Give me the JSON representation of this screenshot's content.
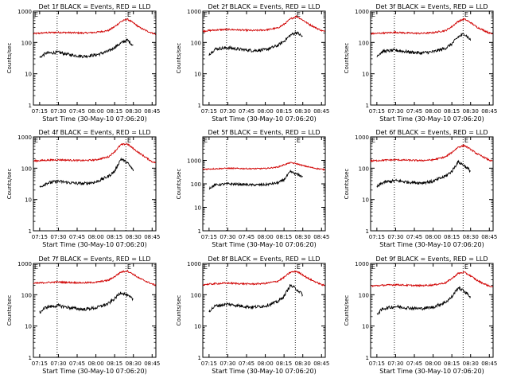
{
  "chart_data": [
    {
      "type": "line",
      "title": "Det 1f BLACK = Events, RED = LLD",
      "xlabel": "Start Time (30-May-10 07:06:20)",
      "ylabel": "Counts/sec",
      "x_ticks": [
        "07:15",
        "07:30",
        "07:45",
        "08:00",
        "08:15",
        "08:30",
        "08:45"
      ],
      "y_ticks": [
        "1",
        "10",
        "100",
        "1000"
      ],
      "xlim": [
        "07:10",
        "08:48"
      ],
      "ylim": [
        1,
        1000
      ],
      "y_scale": "log",
      "vlines": [
        "07:29",
        "08:24"
      ],
      "marker_label": "E",
      "marker_at": "08:25",
      "series": [
        {
          "color": "#d00000",
          "x": [
            "07:10",
            "07:20",
            "07:30",
            "07:40",
            "07:50",
            "08:00",
            "08:10",
            "08:15",
            "08:20",
            "08:25",
            "08:30",
            "08:35",
            "08:40",
            "08:45",
            "08:48"
          ],
          "values": [
            190,
            205,
            210,
            205,
            200,
            210,
            240,
            320,
            460,
            560,
            420,
            300,
            240,
            200,
            180
          ]
        },
        {
          "color": "#000000",
          "x": [
            "07:15",
            "07:20",
            "07:30",
            "07:40",
            "07:50",
            "08:00",
            "08:10",
            "08:15",
            "08:20",
            "08:25",
            "08:30"
          ],
          "values": [
            33,
            45,
            48,
            40,
            36,
            40,
            52,
            70,
            95,
            120,
            80
          ]
        }
      ]
    },
    {
      "type": "line",
      "title": "Det 2f BLACK = Events, RED = LLD",
      "xlabel": "Start Time (30-May-10 07:06:20)",
      "ylabel": "Counts/sec",
      "x_ticks": [
        "07:15",
        "07:30",
        "07:45",
        "08:00",
        "08:15",
        "08:30",
        "08:45"
      ],
      "y_ticks": [
        "1",
        "10",
        "100",
        "1000"
      ],
      "xlim": [
        "07:10",
        "08:48"
      ],
      "ylim": [
        1,
        1000
      ],
      "y_scale": "log",
      "vlines": [
        "07:29",
        "08:24"
      ],
      "marker_label": "E",
      "marker_at": "08:25",
      "series": [
        {
          "color": "#d00000",
          "x": [
            "07:10",
            "07:20",
            "07:30",
            "07:40",
            "07:50",
            "08:00",
            "08:10",
            "08:15",
            "08:20",
            "08:25",
            "08:30",
            "08:35",
            "08:40",
            "08:45",
            "08:48"
          ],
          "values": [
            230,
            250,
            260,
            250,
            240,
            250,
            290,
            380,
            560,
            680,
            520,
            380,
            300,
            240,
            220
          ]
        },
        {
          "color": "#000000",
          "x": [
            "07:15",
            "07:20",
            "07:30",
            "07:40",
            "07:50",
            "08:00",
            "08:10",
            "08:15",
            "08:20",
            "08:25",
            "08:30"
          ],
          "values": [
            42,
            62,
            68,
            60,
            55,
            58,
            80,
            110,
            170,
            210,
            150
          ]
        }
      ]
    },
    {
      "type": "line",
      "title": "Det 3f BLACK = Events, RED = LLD",
      "xlabel": "Start Time (30-May-10 07:06:20)",
      "ylabel": "Counts/sec",
      "x_ticks": [
        "07:15",
        "07:30",
        "07:45",
        "08:00",
        "08:15",
        "08:30",
        "08:45"
      ],
      "y_ticks": [
        "1",
        "10",
        "100",
        "1000"
      ],
      "xlim": [
        "07:10",
        "08:48"
      ],
      "ylim": [
        1,
        1000
      ],
      "y_scale": "log",
      "vlines": [
        "07:29",
        "08:24"
      ],
      "marker_label": "E",
      "marker_at": "08:25",
      "series": [
        {
          "color": "#d00000",
          "x": [
            "07:10",
            "07:20",
            "07:30",
            "07:40",
            "07:50",
            "08:00",
            "08:10",
            "08:15",
            "08:20",
            "08:25",
            "08:30",
            "08:35",
            "08:40",
            "08:45",
            "08:48"
          ],
          "values": [
            190,
            200,
            210,
            200,
            195,
            205,
            240,
            320,
            470,
            560,
            430,
            310,
            250,
            200,
            185
          ]
        },
        {
          "color": "#000000",
          "x": [
            "07:15",
            "07:20",
            "07:30",
            "07:40",
            "07:50",
            "08:00",
            "08:10",
            "08:15",
            "08:20",
            "08:25",
            "08:30"
          ],
          "values": [
            38,
            52,
            56,
            50,
            46,
            50,
            66,
            90,
            150,
            190,
            120
          ]
        }
      ]
    },
    {
      "type": "line",
      "title": "Det 4f BLACK = Events, RED = LLD",
      "xlabel": "Start Time (30-May-10 07:06:20)",
      "ylabel": "Counts/sec",
      "x_ticks": [
        "07:15",
        "07:30",
        "07:45",
        "08:00",
        "08:15",
        "08:30",
        "08:45"
      ],
      "y_ticks": [
        "1",
        "10",
        "100",
        "1000"
      ],
      "xlim": [
        "07:10",
        "08:48"
      ],
      "ylim": [
        1,
        1000
      ],
      "y_scale": "log",
      "vlines": [
        "07:29",
        "08:24"
      ],
      "marker_label": "E",
      "marker_at": "08:25",
      "series": [
        {
          "color": "#d00000",
          "x": [
            "07:10",
            "07:20",
            "07:30",
            "07:40",
            "07:50",
            "08:00",
            "08:10",
            "08:15",
            "08:20",
            "08:25",
            "08:30",
            "08:35",
            "08:40",
            "08:45",
            "08:48"
          ],
          "values": [
            170,
            180,
            185,
            180,
            175,
            185,
            230,
            340,
            560,
            600,
            420,
            300,
            220,
            160,
            150
          ]
        },
        {
          "color": "#000000",
          "x": [
            "07:15",
            "07:20",
            "07:30",
            "07:40",
            "07:50",
            "08:00",
            "08:10",
            "08:15",
            "08:20",
            "08:25",
            "08:30"
          ],
          "values": [
            24,
            33,
            38,
            34,
            32,
            36,
            55,
            80,
            200,
            150,
            85
          ]
        }
      ]
    },
    {
      "type": "line",
      "title": "Det 5f BLACK = Events, RED = LLD",
      "xlabel": "Start Time (30-May-10 07:06:20)",
      "ylabel": "Counts/sec",
      "x_ticks": [
        "07:15",
        "07:30",
        "07:45",
        "08:00",
        "08:15",
        "08:30",
        "08:45"
      ],
      "y_ticks": [
        "1",
        "10",
        "100",
        "1000"
      ],
      "xlim": [
        "07:10",
        "08:48"
      ],
      "ylim": [
        1,
        10000
      ],
      "y_scale": "log",
      "vlines": [
        "07:29",
        "08:24"
      ],
      "marker_label": "E",
      "marker_at": "08:25",
      "series": [
        {
          "color": "#d00000",
          "x": [
            "07:10",
            "07:20",
            "07:30",
            "07:40",
            "07:50",
            "08:00",
            "08:10",
            "08:15",
            "08:20",
            "08:25",
            "08:30",
            "08:35",
            "08:40",
            "08:45",
            "08:48"
          ],
          "values": [
            420,
            440,
            460,
            450,
            440,
            450,
            520,
            650,
            800,
            720,
            600,
            520,
            460,
            420,
            400
          ]
        },
        {
          "color": "#000000",
          "x": [
            "07:15",
            "07:20",
            "07:30",
            "07:40",
            "07:50",
            "08:00",
            "08:10",
            "08:15",
            "08:20",
            "08:25",
            "08:30"
          ],
          "values": [
            65,
            90,
            100,
            95,
            90,
            92,
            110,
            150,
            330,
            260,
            200
          ]
        }
      ]
    },
    {
      "type": "line",
      "title": "Det 6f BLACK = Events, RED = LLD",
      "xlabel": "Start Time (30-May-10 07:06:20)",
      "ylabel": "Counts/sec",
      "x_ticks": [
        "07:15",
        "07:30",
        "07:45",
        "08:00",
        "08:15",
        "08:30",
        "08:45"
      ],
      "y_ticks": [
        "1",
        "10",
        "100",
        "1000"
      ],
      "xlim": [
        "07:10",
        "08:48"
      ],
      "ylim": [
        1,
        1000
      ],
      "y_scale": "log",
      "vlines": [
        "07:29",
        "08:24"
      ],
      "marker_label": "E",
      "marker_at": "08:25",
      "series": [
        {
          "color": "#d00000",
          "x": [
            "07:10",
            "07:20",
            "07:30",
            "07:40",
            "07:50",
            "08:00",
            "08:10",
            "08:15",
            "08:20",
            "08:25",
            "08:30",
            "08:35",
            "08:40",
            "08:45",
            "08:48"
          ],
          "values": [
            170,
            180,
            185,
            180,
            175,
            185,
            230,
            320,
            470,
            530,
            400,
            290,
            230,
            180,
            165
          ]
        },
        {
          "color": "#000000",
          "x": [
            "07:15",
            "07:20",
            "07:30",
            "07:40",
            "07:50",
            "08:00",
            "08:10",
            "08:15",
            "08:20",
            "08:25",
            "08:30"
          ],
          "values": [
            25,
            35,
            40,
            36,
            34,
            38,
            56,
            80,
            160,
            120,
            80
          ]
        }
      ]
    },
    {
      "type": "line",
      "title": "Det 7f BLACK = Events, RED = LLD",
      "xlabel": "Start Time (30-May-10 07:06:20)",
      "ylabel": "Counts/sec",
      "x_ticks": [
        "07:15",
        "07:30",
        "07:45",
        "08:00",
        "08:15",
        "08:30",
        "08:45"
      ],
      "y_ticks": [
        "1",
        "10",
        "100",
        "1000"
      ],
      "xlim": [
        "07:10",
        "08:48"
      ],
      "ylim": [
        1,
        1000
      ],
      "y_scale": "log",
      "vlines": [
        "07:29",
        "08:24"
      ],
      "marker_label": "E",
      "marker_at": "08:25",
      "series": [
        {
          "color": "#d00000",
          "x": [
            "07:10",
            "07:20",
            "07:30",
            "07:40",
            "07:50",
            "08:00",
            "08:10",
            "08:15",
            "08:20",
            "08:25",
            "08:30",
            "08:35",
            "08:40",
            "08:45",
            "08:48"
          ],
          "values": [
            230,
            245,
            255,
            245,
            240,
            250,
            290,
            380,
            530,
            580,
            450,
            330,
            270,
            220,
            200
          ]
        },
        {
          "color": "#000000",
          "x": [
            "07:15",
            "07:20",
            "07:30",
            "07:40",
            "07:50",
            "08:00",
            "08:10",
            "08:15",
            "08:20",
            "08:25",
            "08:30"
          ],
          "values": [
            27,
            40,
            45,
            38,
            34,
            38,
            52,
            75,
            120,
            95,
            70
          ]
        }
      ]
    },
    {
      "type": "line",
      "title": "Det 8f BLACK = Events, RED = LLD",
      "xlabel": "Start Time (30-May-10 07:06:20)",
      "ylabel": "Counts/sec",
      "x_ticks": [
        "07:15",
        "07:30",
        "07:45",
        "08:00",
        "08:15",
        "08:30",
        "08:45"
      ],
      "y_ticks": [
        "1",
        "10",
        "100",
        "1000"
      ],
      "xlim": [
        "07:10",
        "08:48"
      ],
      "ylim": [
        1,
        1000
      ],
      "y_scale": "log",
      "vlines": [
        "07:29",
        "08:24"
      ],
      "marker_label": "E",
      "marker_at": "08:25",
      "series": [
        {
          "color": "#d00000",
          "x": [
            "07:10",
            "07:20",
            "07:30",
            "07:40",
            "07:50",
            "08:00",
            "08:10",
            "08:15",
            "08:20",
            "08:25",
            "08:30",
            "08:35",
            "08:40",
            "08:45",
            "08:48"
          ],
          "values": [
            210,
            225,
            235,
            225,
            220,
            230,
            270,
            360,
            520,
            560,
            430,
            320,
            260,
            210,
            195
          ]
        },
        {
          "color": "#000000",
          "x": [
            "07:15",
            "07:20",
            "07:30",
            "07:40",
            "07:50",
            "08:00",
            "08:10",
            "08:15",
            "08:20",
            "08:25",
            "08:30"
          ],
          "values": [
            30,
            44,
            50,
            44,
            40,
            44,
            60,
            90,
            200,
            150,
            100
          ]
        }
      ]
    },
    {
      "type": "line",
      "title": "Det 9f BLACK = Events, RED = LLD",
      "xlabel": "Start Time (30-May-10 07:06:20)",
      "ylabel": "Counts/sec",
      "x_ticks": [
        "07:15",
        "07:30",
        "07:45",
        "08:00",
        "08:15",
        "08:30",
        "08:45"
      ],
      "y_ticks": [
        "1",
        "10",
        "100",
        "1000"
      ],
      "xlim": [
        "07:10",
        "08:48"
      ],
      "ylim": [
        1,
        1000
      ],
      "y_scale": "log",
      "vlines": [
        "07:29",
        "08:24"
      ],
      "marker_label": "E",
      "marker_at": "08:25",
      "series": [
        {
          "color": "#d00000",
          "x": [
            "07:10",
            "07:20",
            "07:30",
            "07:40",
            "07:50",
            "08:00",
            "08:10",
            "08:15",
            "08:20",
            "08:25",
            "08:30",
            "08:35",
            "08:40",
            "08:45",
            "08:48"
          ],
          "values": [
            190,
            200,
            210,
            200,
            195,
            205,
            240,
            330,
            480,
            520,
            400,
            290,
            230,
            190,
            175
          ]
        },
        {
          "color": "#000000",
          "x": [
            "07:15",
            "07:20",
            "07:30",
            "07:40",
            "07:50",
            "08:00",
            "08:10",
            "08:15",
            "08:20",
            "08:25",
            "08:30"
          ],
          "values": [
            24,
            36,
            42,
            38,
            36,
            40,
            58,
            85,
            170,
            130,
            85
          ]
        }
      ]
    }
  ]
}
